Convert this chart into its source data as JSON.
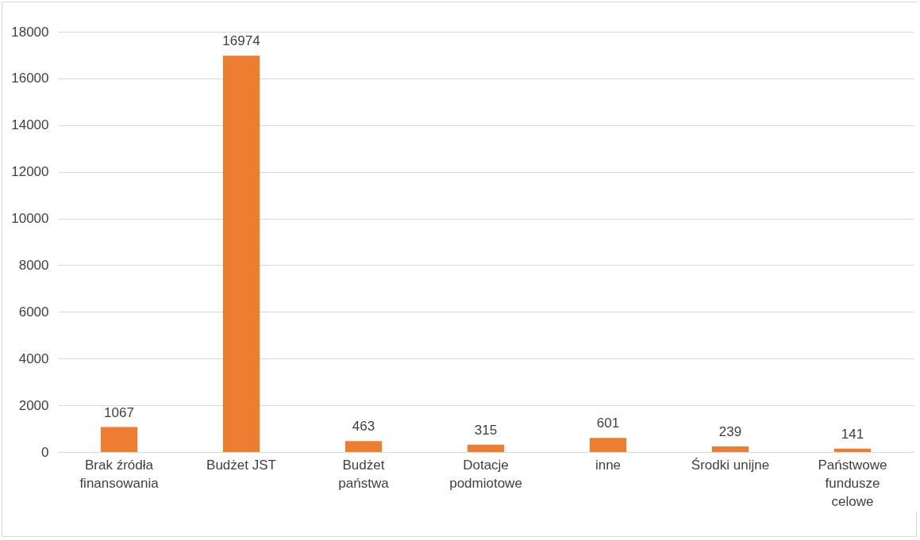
{
  "chart_data": {
    "type": "bar",
    "categories": [
      "Brak źródła finansowania",
      "Budżet JST",
      "Budżet państwa",
      "Dotacje podmiotowe",
      "inne",
      "Środki unijne",
      "Państwowe fundusze celowe"
    ],
    "values": [
      1067,
      16974,
      463,
      315,
      601,
      239,
      141
    ],
    "color": "#ed7d31",
    "ylim": [
      0,
      18000
    ],
    "yticks": [
      0,
      2000,
      4000,
      6000,
      8000,
      10000,
      12000,
      14000,
      16000,
      18000
    ],
    "grid": "y",
    "data_labels": true
  }
}
